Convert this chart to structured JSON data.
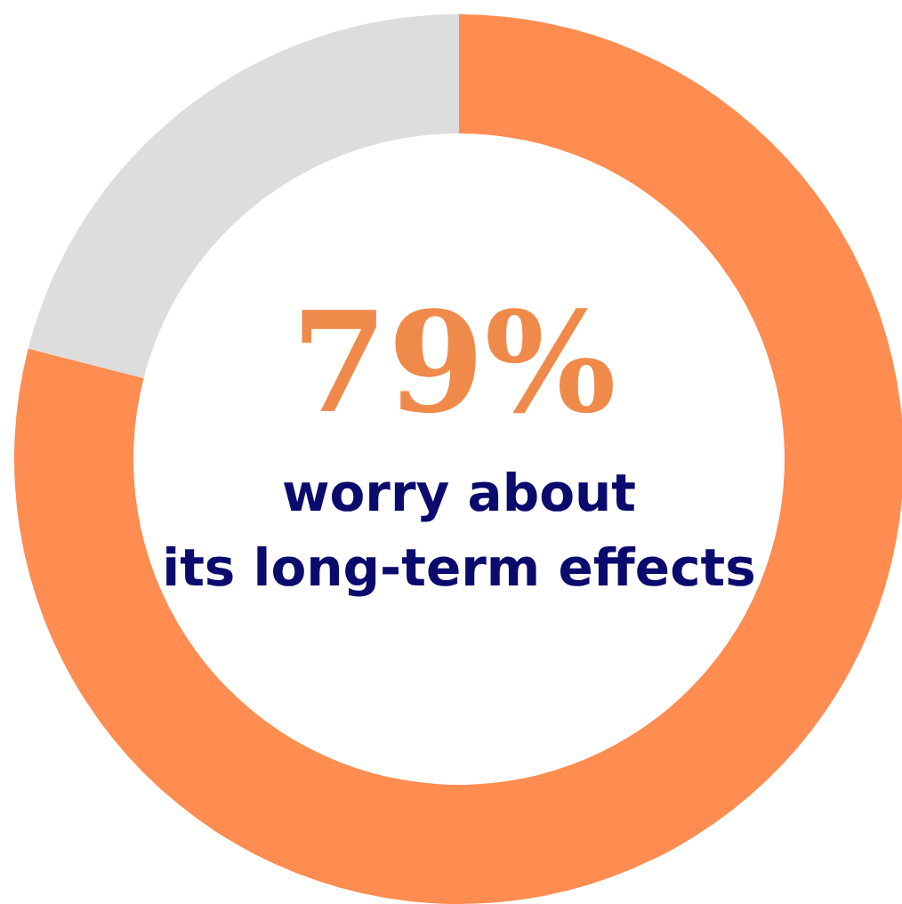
{
  "chart_data": {
    "type": "donut",
    "categories": [
      null,
      null
    ],
    "values": [
      79,
      21
    ],
    "colors": [
      "#ff8c50",
      "#dddddd"
    ],
    "annotations": [
      "79%",
      "worry about\nits long-term effects"
    ]
  }
}
